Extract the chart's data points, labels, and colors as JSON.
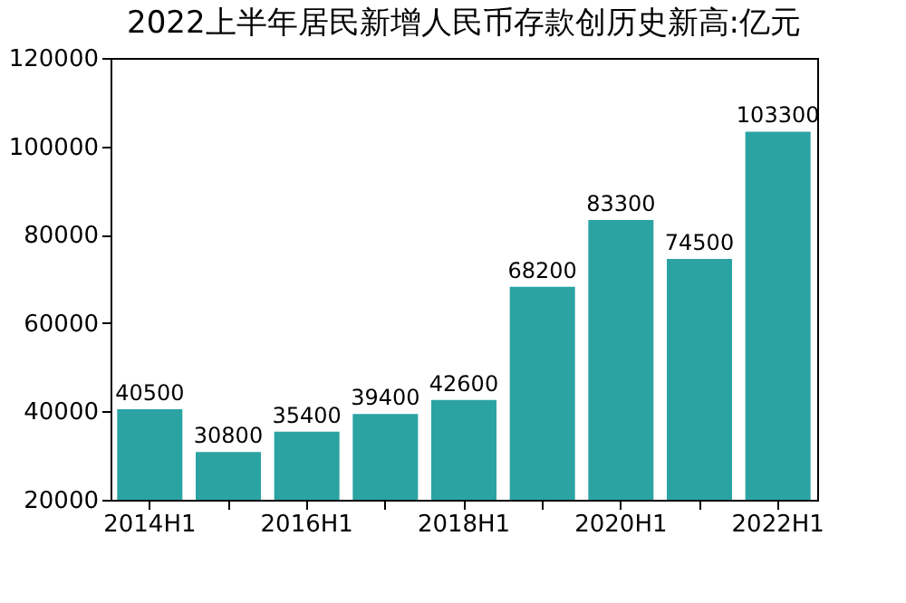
{
  "chart_data": {
    "type": "bar",
    "title": "2022上半年居民新增人民币存款创历史新高:亿元",
    "categories": [
      "2014H1",
      null,
      "2016H1",
      null,
      "2018H1",
      null,
      "2020H1",
      null,
      "2022H1"
    ],
    "values": [
      40500,
      30800,
      35400,
      39400,
      42600,
      68200,
      83300,
      74500,
      103300
    ],
    "color": "#2ca3a3",
    "ylim": [
      20000,
      120000
    ],
    "yticks": [
      20000,
      40000,
      60000,
      80000,
      100000,
      120000
    ],
    "grid": false,
    "data_labels": true
  }
}
